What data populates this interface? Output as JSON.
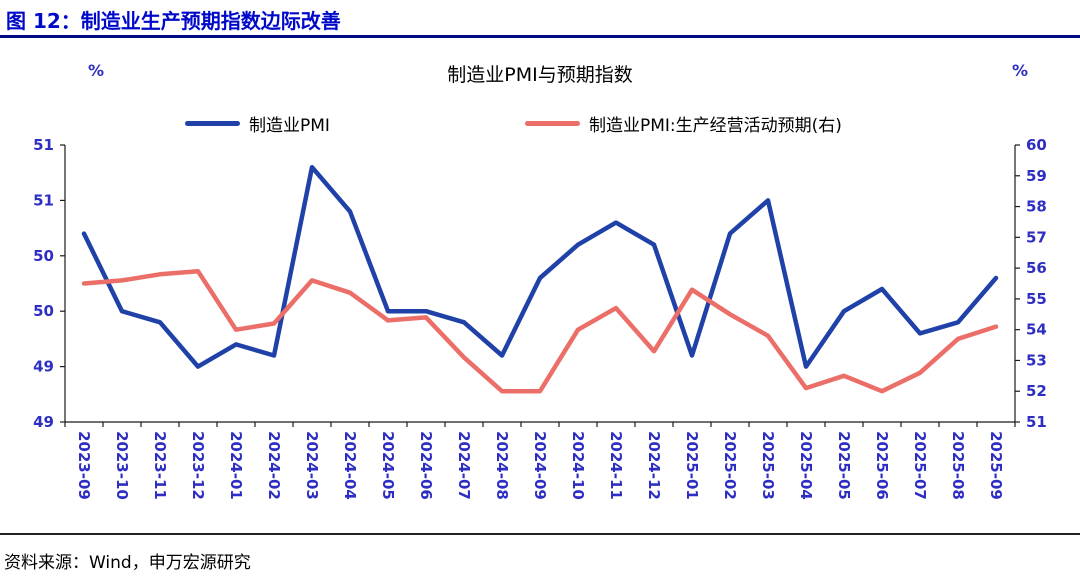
{
  "header": {
    "title": "图 12：制造业生产预期指数边际改善"
  },
  "footer": {
    "source": "资料来源：Wind，申万宏源研究"
  },
  "chart_data": {
    "type": "line",
    "title": "制造业PMI与预期指数",
    "grid": false,
    "legend_position": "top",
    "left_axis": {
      "unit": "%",
      "min": 48.5,
      "max": 51,
      "tick_values": [
        51,
        50.5,
        50,
        49.5,
        49,
        48.5
      ],
      "tick_labels": [
        "51",
        "51",
        "50",
        "50",
        "49",
        "49"
      ]
    },
    "right_axis": {
      "unit": "%",
      "min": 51,
      "max": 60,
      "tick_values": [
        60,
        59,
        58,
        57,
        56,
        55,
        54,
        53,
        52,
        51
      ],
      "tick_labels": [
        "60",
        "59",
        "58",
        "57",
        "56",
        "55",
        "54",
        "53",
        "52",
        "51"
      ]
    },
    "categories": [
      "2023-09",
      "2023-10",
      "2023-11",
      "2023-12",
      "2024-01",
      "2024-02",
      "2024-03",
      "2024-04",
      "2024-05",
      "2024-06",
      "2024-07",
      "2024-08",
      "2024-09",
      "2024-10",
      "2024-11",
      "2024-12",
      "2025-01",
      "2025-02",
      "2025-03",
      "2025-04",
      "2025-05",
      "2025-06",
      "2025-07",
      "2025-08",
      "2025-09"
    ],
    "series": [
      {
        "name": "制造业PMI",
        "axis": "left",
        "color": "#1f41a8",
        "width": 4.5,
        "values": [
          50.2,
          49.5,
          49.4,
          49.0,
          49.2,
          49.1,
          50.8,
          50.4,
          49.5,
          49.5,
          49.4,
          49.1,
          49.8,
          50.1,
          50.3,
          50.1,
          49.1,
          50.2,
          50.5,
          49.0,
          49.5,
          49.7,
          49.3,
          49.4,
          49.8
        ]
      },
      {
        "name": "制造业PMI:生产经营活动预期(右)",
        "axis": "right",
        "color": "#ec6e68",
        "width": 4.5,
        "values": [
          55.5,
          55.6,
          55.8,
          55.9,
          54.0,
          54.2,
          55.6,
          55.2,
          54.3,
          54.4,
          53.1,
          52.0,
          52.0,
          54.0,
          54.7,
          53.3,
          55.3,
          54.5,
          53.8,
          52.1,
          52.5,
          52.0,
          52.6,
          53.7,
          54.1
        ]
      }
    ]
  },
  "colors": {
    "header_blue": "#0009c9",
    "rule_navy": "#000a86",
    "tick_text_blue": "#2e2ec2",
    "axis_line": "#1a1a1a"
  }
}
